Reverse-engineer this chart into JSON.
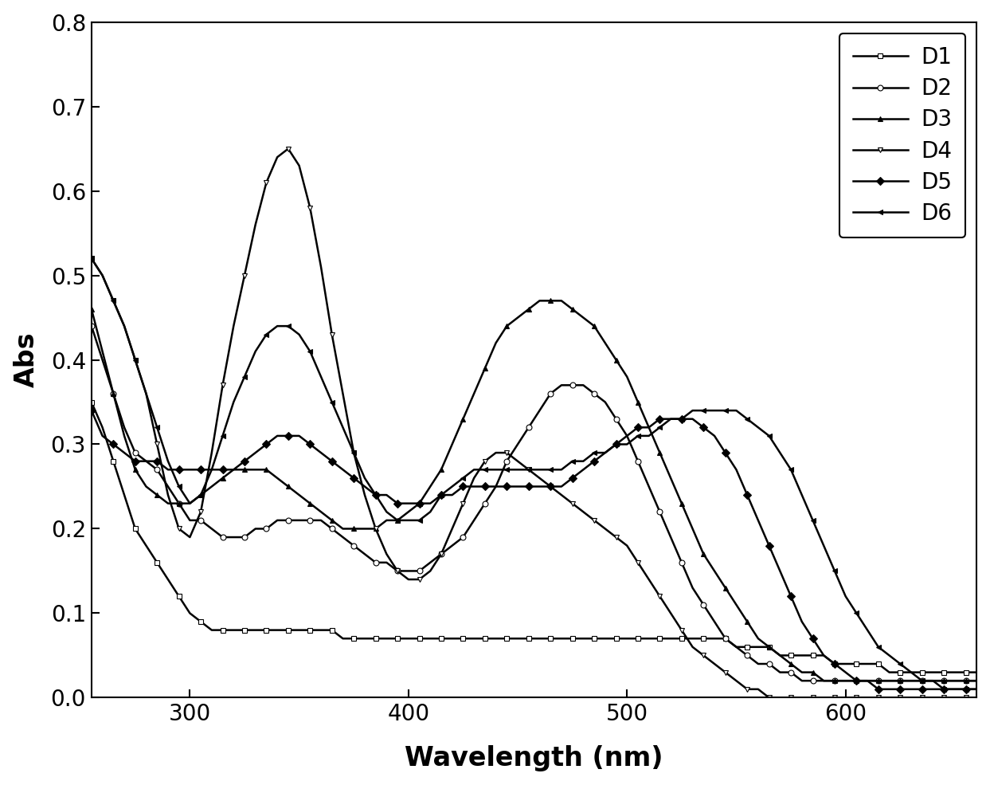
{
  "title": "",
  "xlabel": "Wavelength (nm)",
  "ylabel": "Abs",
  "xlim": [
    255,
    660
  ],
  "ylim": [
    0.0,
    0.8
  ],
  "yticks": [
    0.0,
    0.1,
    0.2,
    0.3,
    0.4,
    0.5,
    0.6,
    0.7,
    0.8
  ],
  "xticks": [
    300,
    400,
    500,
    600
  ],
  "series": {
    "D1": {
      "marker": "s",
      "x": [
        255,
        260,
        265,
        270,
        275,
        280,
        285,
        290,
        295,
        300,
        305,
        310,
        315,
        320,
        325,
        330,
        335,
        340,
        345,
        350,
        355,
        360,
        365,
        370,
        375,
        380,
        385,
        390,
        395,
        400,
        405,
        410,
        415,
        420,
        425,
        430,
        435,
        440,
        445,
        450,
        455,
        460,
        465,
        470,
        475,
        480,
        485,
        490,
        495,
        500,
        505,
        510,
        515,
        520,
        525,
        530,
        535,
        540,
        545,
        550,
        555,
        560,
        565,
        570,
        575,
        580,
        585,
        590,
        595,
        600,
        605,
        610,
        615,
        620,
        625,
        630,
        635,
        640,
        645,
        650,
        655,
        660
      ],
      "y": [
        0.35,
        0.32,
        0.28,
        0.24,
        0.2,
        0.18,
        0.16,
        0.14,
        0.12,
        0.1,
        0.09,
        0.08,
        0.08,
        0.08,
        0.08,
        0.08,
        0.08,
        0.08,
        0.08,
        0.08,
        0.08,
        0.08,
        0.08,
        0.07,
        0.07,
        0.07,
        0.07,
        0.07,
        0.07,
        0.07,
        0.07,
        0.07,
        0.07,
        0.07,
        0.07,
        0.07,
        0.07,
        0.07,
        0.07,
        0.07,
        0.07,
        0.07,
        0.07,
        0.07,
        0.07,
        0.07,
        0.07,
        0.07,
        0.07,
        0.07,
        0.07,
        0.07,
        0.07,
        0.07,
        0.07,
        0.07,
        0.07,
        0.07,
        0.07,
        0.06,
        0.06,
        0.06,
        0.06,
        0.05,
        0.05,
        0.05,
        0.05,
        0.05,
        0.04,
        0.04,
        0.04,
        0.04,
        0.04,
        0.03,
        0.03,
        0.03,
        0.03,
        0.03,
        0.03,
        0.03,
        0.03,
        0.03
      ]
    },
    "D2": {
      "marker": "o",
      "x": [
        255,
        260,
        265,
        270,
        275,
        280,
        285,
        290,
        295,
        300,
        305,
        310,
        315,
        320,
        325,
        330,
        335,
        340,
        345,
        350,
        355,
        360,
        365,
        370,
        375,
        380,
        385,
        390,
        395,
        400,
        405,
        410,
        415,
        420,
        425,
        430,
        435,
        440,
        445,
        450,
        455,
        460,
        465,
        470,
        475,
        480,
        485,
        490,
        495,
        500,
        505,
        510,
        515,
        520,
        525,
        530,
        535,
        540,
        545,
        550,
        555,
        560,
        565,
        570,
        575,
        580,
        585,
        590,
        595,
        600,
        605,
        610,
        615,
        620,
        625,
        630,
        635,
        640,
        645,
        650,
        655,
        660
      ],
      "y": [
        0.44,
        0.4,
        0.36,
        0.32,
        0.29,
        0.28,
        0.27,
        0.25,
        0.23,
        0.21,
        0.21,
        0.2,
        0.19,
        0.19,
        0.19,
        0.2,
        0.2,
        0.21,
        0.21,
        0.21,
        0.21,
        0.21,
        0.2,
        0.19,
        0.18,
        0.17,
        0.16,
        0.16,
        0.15,
        0.15,
        0.15,
        0.16,
        0.17,
        0.18,
        0.19,
        0.21,
        0.23,
        0.25,
        0.28,
        0.3,
        0.32,
        0.34,
        0.36,
        0.37,
        0.37,
        0.37,
        0.36,
        0.35,
        0.33,
        0.31,
        0.28,
        0.25,
        0.22,
        0.19,
        0.16,
        0.13,
        0.11,
        0.09,
        0.07,
        0.06,
        0.05,
        0.04,
        0.04,
        0.03,
        0.03,
        0.02,
        0.02,
        0.02,
        0.02,
        0.02,
        0.02,
        0.02,
        0.02,
        0.02,
        0.02,
        0.02,
        0.02,
        0.02,
        0.02,
        0.02,
        0.02,
        0.02
      ]
    },
    "D3": {
      "marker": "^",
      "x": [
        255,
        260,
        265,
        270,
        275,
        280,
        285,
        290,
        295,
        300,
        305,
        310,
        315,
        320,
        325,
        330,
        335,
        340,
        345,
        350,
        355,
        360,
        365,
        370,
        375,
        380,
        385,
        390,
        395,
        400,
        405,
        410,
        415,
        420,
        425,
        430,
        435,
        440,
        445,
        450,
        455,
        460,
        465,
        470,
        475,
        480,
        485,
        490,
        495,
        500,
        505,
        510,
        515,
        520,
        525,
        530,
        535,
        540,
        545,
        550,
        555,
        560,
        565,
        570,
        575,
        580,
        585,
        590,
        595,
        600,
        605,
        610,
        615,
        620,
        625,
        630,
        635,
        640,
        645,
        650,
        655,
        660
      ],
      "y": [
        0.46,
        0.41,
        0.36,
        0.31,
        0.27,
        0.25,
        0.24,
        0.23,
        0.23,
        0.23,
        0.24,
        0.25,
        0.26,
        0.27,
        0.27,
        0.27,
        0.27,
        0.26,
        0.25,
        0.24,
        0.23,
        0.22,
        0.21,
        0.2,
        0.2,
        0.2,
        0.2,
        0.21,
        0.21,
        0.22,
        0.23,
        0.25,
        0.27,
        0.3,
        0.33,
        0.36,
        0.39,
        0.42,
        0.44,
        0.45,
        0.46,
        0.47,
        0.47,
        0.47,
        0.46,
        0.45,
        0.44,
        0.42,
        0.4,
        0.38,
        0.35,
        0.32,
        0.29,
        0.26,
        0.23,
        0.2,
        0.17,
        0.15,
        0.13,
        0.11,
        0.09,
        0.07,
        0.06,
        0.05,
        0.04,
        0.03,
        0.03,
        0.02,
        0.02,
        0.02,
        0.02,
        0.02,
        0.02,
        0.02,
        0.02,
        0.02,
        0.02,
        0.02,
        0.02,
        0.02,
        0.02,
        0.02
      ]
    },
    "D4": {
      "marker": "v",
      "x": [
        255,
        260,
        265,
        270,
        275,
        280,
        285,
        290,
        295,
        300,
        305,
        310,
        315,
        320,
        325,
        330,
        335,
        340,
        345,
        350,
        355,
        360,
        365,
        370,
        375,
        380,
        385,
        390,
        395,
        400,
        405,
        410,
        415,
        420,
        425,
        430,
        435,
        440,
        445,
        450,
        455,
        460,
        465,
        470,
        475,
        480,
        485,
        490,
        495,
        500,
        505,
        510,
        515,
        520,
        525,
        530,
        535,
        540,
        545,
        550,
        555,
        560,
        565,
        570,
        575,
        580,
        585,
        590,
        595,
        600,
        605,
        610,
        615,
        620,
        625,
        630,
        635,
        640,
        645,
        650,
        655,
        660
      ],
      "y": [
        0.52,
        0.5,
        0.47,
        0.44,
        0.4,
        0.36,
        0.3,
        0.24,
        0.2,
        0.19,
        0.22,
        0.29,
        0.37,
        0.44,
        0.5,
        0.56,
        0.61,
        0.64,
        0.65,
        0.63,
        0.58,
        0.51,
        0.43,
        0.36,
        0.29,
        0.24,
        0.2,
        0.17,
        0.15,
        0.14,
        0.14,
        0.15,
        0.17,
        0.2,
        0.23,
        0.26,
        0.28,
        0.29,
        0.29,
        0.28,
        0.27,
        0.26,
        0.25,
        0.24,
        0.23,
        0.22,
        0.21,
        0.2,
        0.19,
        0.18,
        0.16,
        0.14,
        0.12,
        0.1,
        0.08,
        0.06,
        0.05,
        0.04,
        0.03,
        0.02,
        0.01,
        0.01,
        0.0,
        0.0,
        0.0,
        0.0,
        0.0,
        0.0,
        0.0,
        0.0,
        0.0,
        0.0,
        0.0,
        0.0,
        0.0,
        0.0,
        0.0,
        0.0,
        0.0,
        0.0,
        0.0,
        0.0
      ]
    },
    "D5": {
      "marker": "D",
      "x": [
        255,
        260,
        265,
        270,
        275,
        280,
        285,
        290,
        295,
        300,
        305,
        310,
        315,
        320,
        325,
        330,
        335,
        340,
        345,
        350,
        355,
        360,
        365,
        370,
        375,
        380,
        385,
        390,
        395,
        400,
        405,
        410,
        415,
        420,
        425,
        430,
        435,
        440,
        445,
        450,
        455,
        460,
        465,
        470,
        475,
        480,
        485,
        490,
        495,
        500,
        505,
        510,
        515,
        520,
        525,
        530,
        535,
        540,
        545,
        550,
        555,
        560,
        565,
        570,
        575,
        580,
        585,
        590,
        595,
        600,
        605,
        610,
        615,
        620,
        625,
        630,
        635,
        640,
        645,
        650,
        655,
        660
      ],
      "y": [
        0.34,
        0.31,
        0.3,
        0.29,
        0.28,
        0.28,
        0.28,
        0.27,
        0.27,
        0.27,
        0.27,
        0.27,
        0.27,
        0.27,
        0.28,
        0.29,
        0.3,
        0.31,
        0.31,
        0.31,
        0.3,
        0.29,
        0.28,
        0.27,
        0.26,
        0.25,
        0.24,
        0.24,
        0.23,
        0.23,
        0.23,
        0.23,
        0.24,
        0.24,
        0.25,
        0.25,
        0.25,
        0.25,
        0.25,
        0.25,
        0.25,
        0.25,
        0.25,
        0.25,
        0.26,
        0.27,
        0.28,
        0.29,
        0.3,
        0.31,
        0.32,
        0.32,
        0.33,
        0.33,
        0.33,
        0.33,
        0.32,
        0.31,
        0.29,
        0.27,
        0.24,
        0.21,
        0.18,
        0.15,
        0.12,
        0.09,
        0.07,
        0.05,
        0.04,
        0.03,
        0.02,
        0.02,
        0.01,
        0.01,
        0.01,
        0.01,
        0.01,
        0.01,
        0.01,
        0.01,
        0.01,
        0.01
      ]
    },
    "D6": {
      "marker": "<",
      "x": [
        255,
        260,
        265,
        270,
        275,
        280,
        285,
        290,
        295,
        300,
        305,
        310,
        315,
        320,
        325,
        330,
        335,
        340,
        345,
        350,
        355,
        360,
        365,
        370,
        375,
        380,
        385,
        390,
        395,
        400,
        405,
        410,
        415,
        420,
        425,
        430,
        435,
        440,
        445,
        450,
        455,
        460,
        465,
        470,
        475,
        480,
        485,
        490,
        495,
        500,
        505,
        510,
        515,
        520,
        525,
        530,
        535,
        540,
        545,
        550,
        555,
        560,
        565,
        570,
        575,
        580,
        585,
        590,
        595,
        600,
        605,
        610,
        615,
        620,
        625,
        630,
        635,
        640,
        645,
        650,
        655,
        660
      ],
      "y": [
        0.52,
        0.5,
        0.47,
        0.44,
        0.4,
        0.36,
        0.32,
        0.28,
        0.25,
        0.23,
        0.24,
        0.27,
        0.31,
        0.35,
        0.38,
        0.41,
        0.43,
        0.44,
        0.44,
        0.43,
        0.41,
        0.38,
        0.35,
        0.32,
        0.29,
        0.26,
        0.24,
        0.22,
        0.21,
        0.21,
        0.21,
        0.22,
        0.24,
        0.25,
        0.26,
        0.27,
        0.27,
        0.27,
        0.27,
        0.27,
        0.27,
        0.27,
        0.27,
        0.27,
        0.28,
        0.28,
        0.29,
        0.29,
        0.3,
        0.3,
        0.31,
        0.31,
        0.32,
        0.33,
        0.33,
        0.34,
        0.34,
        0.34,
        0.34,
        0.34,
        0.33,
        0.32,
        0.31,
        0.29,
        0.27,
        0.24,
        0.21,
        0.18,
        0.15,
        0.12,
        0.1,
        0.08,
        0.06,
        0.05,
        0.04,
        0.03,
        0.02,
        0.02,
        0.01,
        0.01,
        0.01,
        0.01
      ]
    }
  },
  "legend_labels": [
    "D1",
    "D2",
    "D3",
    "D4",
    "D5",
    "D6"
  ],
  "markersize": 5,
  "linewidth": 1.8,
  "markevery": 2,
  "background_color": "#ffffff",
  "line_color": "#000000"
}
